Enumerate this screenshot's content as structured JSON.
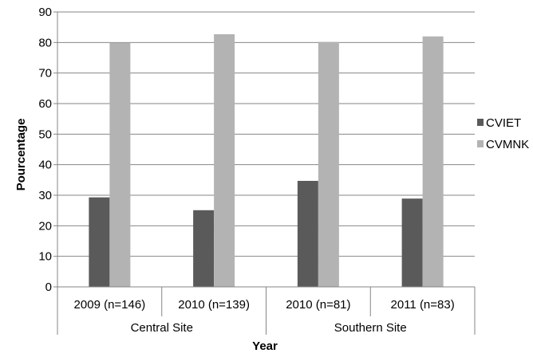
{
  "chart_data": {
    "type": "bar",
    "categories": [
      "2009 (n=146)",
      "2010 (n=139)",
      "2010 (n=81)",
      "2011 (n=83)"
    ],
    "groups": [
      {
        "label": "Central Site",
        "categories": [
          "2009 (n=146)",
          "2010 (n=139)"
        ]
      },
      {
        "label": "Southern Site",
        "categories": [
          "2010 (n=81)",
          "2011 (n=83)"
        ]
      }
    ],
    "series": [
      {
        "name": "CVIET",
        "values": [
          29.3,
          25.1,
          34.7,
          28.9
        ],
        "color": "#5a5a5a"
      },
      {
        "name": "CVMNK",
        "values": [
          79.9,
          82.7,
          80.2,
          82.0
        ],
        "color": "#b3b3b3"
      }
    ],
    "xlabel": "Year",
    "ylabel": "Pourcentage",
    "ylim": [
      0,
      90
    ],
    "yticks": [
      0,
      10,
      20,
      30,
      40,
      50,
      60,
      70,
      80,
      90
    ],
    "grid": true,
    "legend": "right"
  }
}
